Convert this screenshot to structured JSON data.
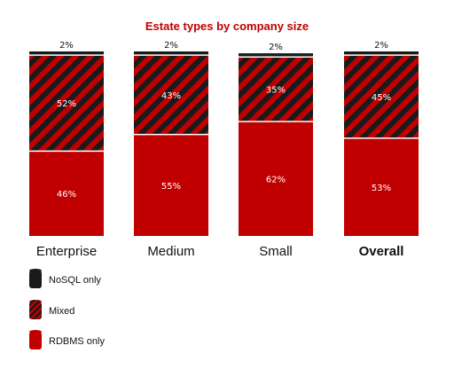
{
  "chart_data": {
    "type": "bar",
    "stacked": true,
    "orientation": "vertical",
    "title": "Estate types by company size",
    "categories": [
      "Enterprise",
      "Medium",
      "Small",
      "Overall"
    ],
    "emphasized_category": "Overall",
    "ylim": [
      0,
      100
    ],
    "value_suffix": "%",
    "series": [
      {
        "name": "RDBMS only",
        "values": [
          46,
          55,
          62,
          53
        ],
        "color": "#c00000",
        "pattern": "solid"
      },
      {
        "name": "Mixed",
        "values": [
          52,
          43,
          35,
          45
        ],
        "color": "#c00000",
        "pattern": "diagonal-stripes",
        "stripe_color": "#1a1a1a"
      },
      {
        "name": "NoSQL only",
        "values": [
          2,
          2,
          2,
          2
        ],
        "color": "#1a1a1a",
        "pattern": "solid"
      }
    ],
    "legend": {
      "position": "bottom-left",
      "order": [
        "NoSQL only",
        "Mixed",
        "RDBMS only"
      ]
    },
    "grid": false
  },
  "colors": {
    "title": "#c00000",
    "label_on_bar": "#ffffff",
    "label_above_bar": "#111111",
    "segment_divider": "#ffffff"
  }
}
